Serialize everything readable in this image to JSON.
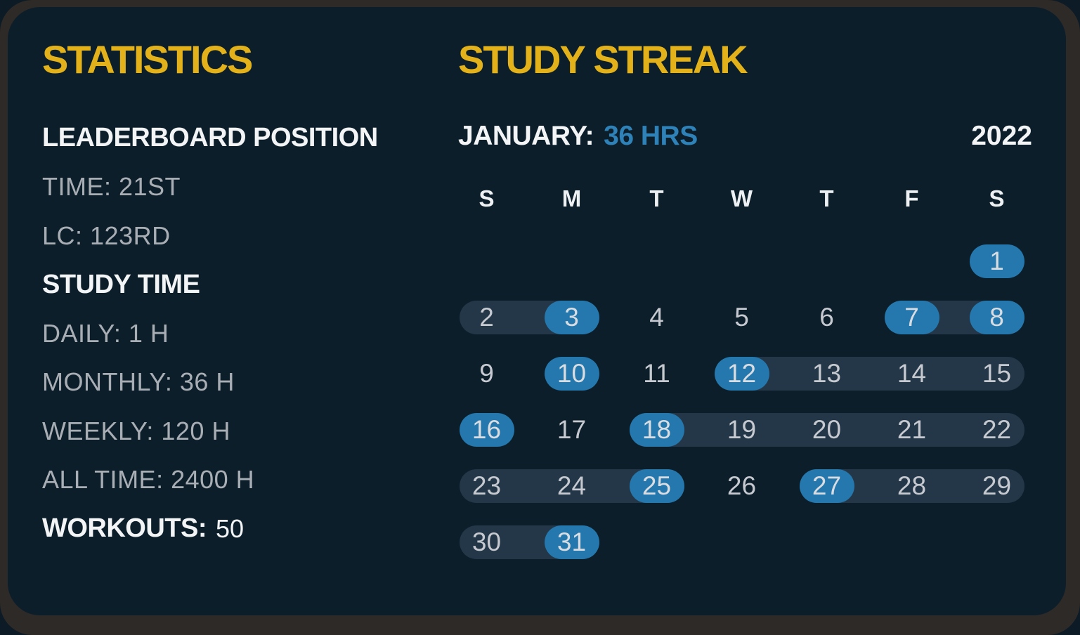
{
  "colors": {
    "page_bg": "#0c1b26",
    "frame": "#2e2a27",
    "card_bg": "#0c1e2a",
    "accent_yellow": "#e3b21b",
    "accent_blue": "#2478ad",
    "accent_blue_bright": "#2e82b8",
    "streak_pill": "#243748",
    "text_white": "#f2f4f6",
    "text_gray": "#a9aeb5",
    "day_number_gray": "#c6cad0"
  },
  "statistics": {
    "title": "STATISTICS",
    "leaderboard_heading": "LEADERBOARD POSITION",
    "time_rank": "TIME: 21ST",
    "lc_rank": "LC: 123RD",
    "study_time_heading": "STUDY TIME",
    "daily": "DAILY: 1 H",
    "monthly": "MONTHLY: 36 H",
    "weekly": "WEEKLY: 120 H",
    "all_time": "ALL TIME: 2400 H",
    "workouts_label": "WORKOUTS:",
    "workouts_value": "50"
  },
  "streak": {
    "title": "STUDY STREAK",
    "month_label": "JANUARY:",
    "month_hours": "36 HRS",
    "year": "2022",
    "weekday_headers": [
      "S",
      "M",
      "T",
      "W",
      "T",
      "F",
      "S"
    ],
    "weeks": [
      [
        null,
        null,
        null,
        null,
        null,
        null,
        1
      ],
      [
        2,
        3,
        4,
        5,
        6,
        7,
        8
      ],
      [
        9,
        10,
        11,
        12,
        13,
        14,
        15
      ],
      [
        16,
        17,
        18,
        19,
        20,
        21,
        22
      ],
      [
        23,
        24,
        25,
        26,
        27,
        28,
        29
      ],
      [
        30,
        31,
        null,
        null,
        null,
        null,
        null
      ]
    ],
    "highlighted_days": [
      1,
      3,
      7,
      8,
      10,
      12,
      16,
      18,
      25,
      27,
      31
    ],
    "streak_ranges": [
      {
        "week": 1,
        "from": 0,
        "to": 1
      },
      {
        "week": 1,
        "from": 5,
        "to": 6
      },
      {
        "week": 2,
        "from": 3,
        "to": 6
      },
      {
        "week": 3,
        "from": 2,
        "to": 6
      },
      {
        "week": 4,
        "from": 0,
        "to": 2
      },
      {
        "week": 4,
        "from": 4,
        "to": 6
      },
      {
        "week": 5,
        "from": 0,
        "to": 1
      }
    ]
  }
}
